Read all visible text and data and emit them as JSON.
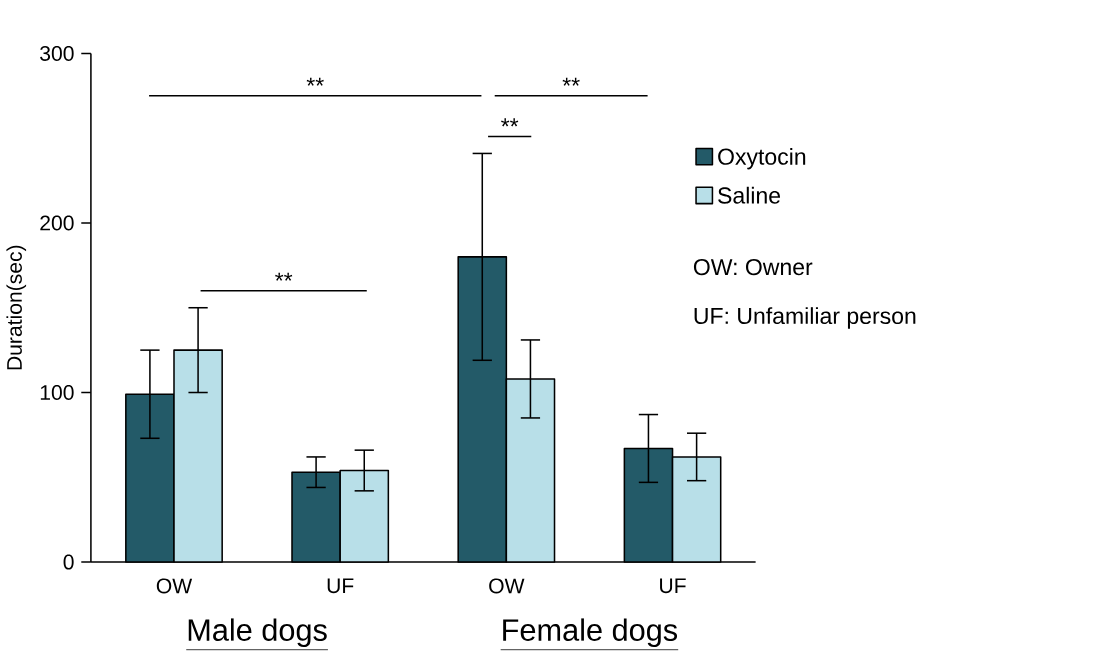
{
  "chart_data": {
    "type": "bar",
    "ylabel": "Duration(sec)",
    "categories": [
      "OW",
      "UF",
      "OW",
      "UF"
    ],
    "series": [
      {
        "name": "Oxytocin",
        "color": "#235a68",
        "values": [
          99,
          53,
          180,
          67
        ],
        "errors": [
          26,
          9,
          61,
          20
        ]
      },
      {
        "name": "Saline",
        "color": "#b8dfe8",
        "values": [
          125,
          54,
          108,
          62
        ],
        "errors": [
          25,
          12,
          23,
          14
        ]
      }
    ],
    "ylim": [
      0,
      300
    ],
    "yticks": [
      0,
      100,
      200,
      300
    ],
    "legend": "right",
    "grid": false,
    "annotations": [
      "**",
      "**",
      "**",
      "**",
      "OW: Owner",
      "UF: Unfamiliar person",
      "Male dogs",
      "Female dogs"
    ]
  }
}
